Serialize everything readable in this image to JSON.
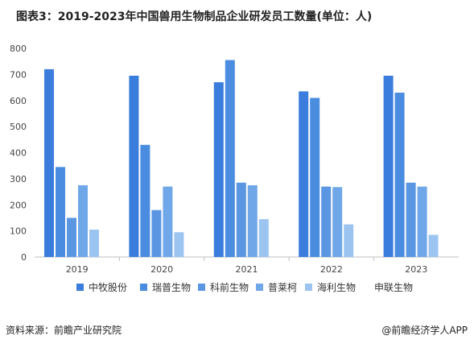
{
  "title": "图表3：2019-2023年中国兽用生物制品企业研发员工数量(单位：人)",
  "source": "资料来源：前瞻产业研究院",
  "brand": "@前瞻经济学人APP",
  "chart_data": {
    "type": "bar",
    "categories": [
      "2019",
      "2020",
      "2021",
      "2022",
      "2023"
    ],
    "ylim": [
      0,
      800
    ],
    "yticks": [
      0,
      100,
      200,
      300,
      400,
      500,
      600,
      700,
      800
    ],
    "grid": false,
    "legend_position": "bottom",
    "series": [
      {
        "name": "中牧股份",
        "color": "#3b7ddd",
        "values": [
          720,
          695,
          670,
          635,
          695
        ]
      },
      {
        "name": "瑞普生物",
        "color": "#4a8ce0",
        "values": [
          345,
          430,
          755,
          610,
          630
        ]
      },
      {
        "name": "科前生物",
        "color": "#5a96e2",
        "values": [
          150,
          180,
          285,
          270,
          285
        ]
      },
      {
        "name": "普莱柯",
        "color": "#70a7e8",
        "values": [
          275,
          270,
          275,
          268,
          270
        ]
      },
      {
        "name": "海利生物",
        "color": "#9cc4f0",
        "values": [
          105,
          95,
          145,
          125,
          85
        ]
      },
      {
        "name": "申联生物",
        "color": "#ffffff",
        "values": [
          0,
          0,
          0,
          0,
          0
        ]
      }
    ]
  }
}
